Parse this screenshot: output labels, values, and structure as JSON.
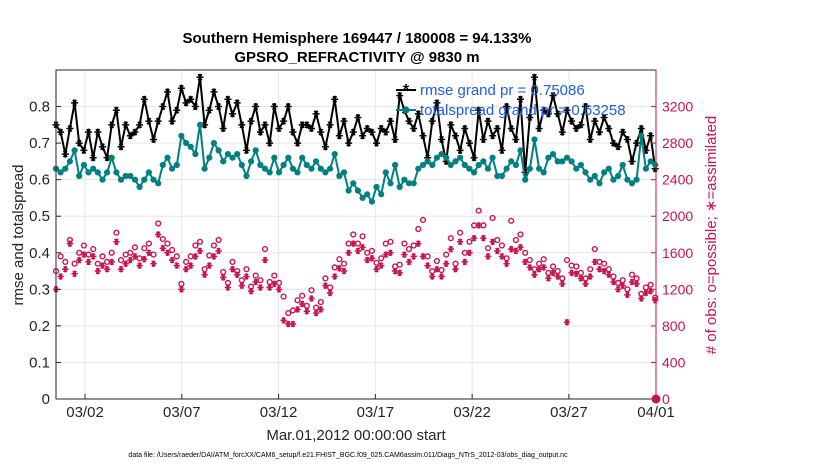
{
  "chart_data": {
    "type": "line",
    "title_line1": "Southern Hemisphere 169447 / 180008 = 94.133%",
    "title_line2": "GPSRO_REFRACTIVITY @ 9830 m",
    "xlabel": "Mar.01,2012 00:00:00 start",
    "ylabel_left": "rmse and totalspread",
    "ylabel_right": "# of obs: o=possible; ∗=assimilated",
    "footer": "data file: /Users/raeder/DAI/ATM_forcXX/CAM6_setup/f.e21.FHIST_BGC.f09_025.CAM6assim.011/Diags_NTrS_2012-03/obs_diag_output.nc",
    "xlim": [
      0.5,
      31.5
    ],
    "ylim_left": [
      0,
      0.9
    ],
    "ylim_right": [
      0,
      3600
    ],
    "x_tick_labels": [
      "03/02",
      "03/07",
      "03/12",
      "03/17",
      "03/22",
      "03/27",
      "04/01"
    ],
    "x_tick_values": [
      2,
      7,
      12,
      17,
      22,
      27,
      32
    ],
    "y_left_ticks": [
      "0",
      "0.1",
      "0.2",
      "0.3",
      "0.4",
      "0.5",
      "0.6",
      "0.7",
      "0.8"
    ],
    "y_left_tick_values": [
      0,
      0.1,
      0.2,
      0.3,
      0.4,
      0.5,
      0.6,
      0.7,
      0.8
    ],
    "y_right_ticks": [
      "0",
      "400",
      "800",
      "1200",
      "1600",
      "2000",
      "2400",
      "2800",
      "3200"
    ],
    "y_right_tick_values": [
      0,
      400,
      800,
      1200,
      1600,
      2000,
      2400,
      2800,
      3200
    ],
    "colors": {
      "rmse": "#000000",
      "spread": "#008080",
      "obs": "#c8144f",
      "legend_text": "#1f5fe0",
      "axis": "#262626"
    },
    "series": [
      {
        "name": "rmse grand pr = 0.75086",
        "axis": "left",
        "x": [
          0.5,
          0.74,
          0.98,
          1.22,
          1.46,
          1.7,
          1.94,
          2.18,
          2.42,
          2.66,
          2.9,
          3.14,
          3.38,
          3.62,
          3.86,
          4.1,
          4.34,
          4.58,
          4.82,
          5.06,
          5.3,
          5.54,
          5.78,
          6.02,
          6.26,
          6.5,
          6.74,
          6.98,
          7.22,
          7.46,
          7.7,
          7.94,
          8.18,
          8.42,
          8.66,
          8.9,
          9.14,
          9.38,
          9.62,
          9.86,
          10.1,
          10.34,
          10.58,
          10.82,
          11.06,
          11.3,
          11.54,
          11.78,
          12.02,
          12.26,
          12.5,
          12.74,
          12.98,
          13.22,
          13.46,
          13.7,
          13.94,
          14.18,
          14.42,
          14.66,
          14.9,
          15.14,
          15.38,
          15.62,
          15.86,
          16.1,
          16.34,
          16.58,
          16.82,
          17.06,
          17.3,
          17.54,
          17.78,
          18.02,
          18.26,
          18.5,
          18.74,
          18.98,
          19.22,
          19.46,
          19.7,
          19.94,
          20.18,
          20.42,
          20.66,
          20.9,
          21.14,
          21.38,
          21.62,
          21.86,
          22.1,
          22.34,
          22.58,
          22.82,
          23.06,
          23.3,
          23.54,
          23.78,
          24.02,
          24.26,
          24.5,
          24.74,
          24.98,
          25.22,
          25.46,
          25.7,
          25.94,
          26.18,
          26.42,
          26.66,
          26.9,
          27.14,
          27.38,
          27.62,
          27.86,
          28.1,
          28.34,
          28.58,
          28.82,
          29.06,
          29.3,
          29.54,
          29.78,
          30.02,
          30.26,
          30.5,
          30.74,
          30.98,
          31.22,
          31.46
        ],
        "values": [
          0.75,
          0.73,
          0.67,
          0.74,
          0.81,
          0.7,
          0.68,
          0.73,
          0.66,
          0.73,
          0.69,
          0.66,
          0.75,
          0.79,
          0.69,
          0.75,
          0.72,
          0.73,
          0.75,
          0.82,
          0.76,
          0.71,
          0.76,
          0.8,
          0.84,
          0.76,
          0.79,
          0.85,
          0.81,
          0.82,
          0.8,
          0.88,
          0.75,
          0.79,
          0.84,
          0.8,
          0.74,
          0.82,
          0.78,
          0.81,
          0.75,
          0.68,
          0.76,
          0.8,
          0.73,
          0.75,
          0.7,
          0.8,
          0.74,
          0.76,
          0.8,
          0.73,
          0.7,
          0.75,
          0.75,
          0.74,
          0.78,
          0.73,
          0.69,
          0.75,
          0.82,
          0.72,
          0.76,
          0.7,
          0.73,
          0.77,
          0.72,
          0.74,
          0.73,
          0.7,
          0.74,
          0.73,
          0.76,
          0.71,
          0.83,
          0.79,
          0.76,
          0.74,
          0.78,
          0.72,
          0.66,
          0.76,
          0.81,
          0.71,
          0.65,
          0.75,
          0.72,
          0.68,
          0.74,
          0.7,
          0.66,
          0.79,
          0.71,
          0.76,
          0.72,
          0.74,
          0.68,
          0.8,
          0.74,
          0.71,
          0.82,
          0.62,
          0.77,
          0.88,
          0.74,
          0.79,
          0.78,
          0.83,
          0.78,
          0.73,
          0.79,
          0.76,
          0.74,
          0.75,
          0.8,
          0.71,
          0.76,
          0.73,
          0.77,
          0.74,
          0.7,
          0.69,
          0.73,
          0.71,
          0.65,
          0.7,
          0.74,
          0.68,
          0.72,
          0.63
        ],
        "marker": "*"
      },
      {
        "name": "totalspread grand pr = 0.63258",
        "axis": "left",
        "x": [
          0.5,
          0.74,
          0.98,
          1.22,
          1.46,
          1.7,
          1.94,
          2.18,
          2.42,
          2.66,
          2.9,
          3.14,
          3.38,
          3.62,
          3.86,
          4.1,
          4.34,
          4.58,
          4.82,
          5.06,
          5.3,
          5.54,
          5.78,
          6.02,
          6.26,
          6.5,
          6.74,
          6.98,
          7.22,
          7.46,
          7.7,
          7.94,
          8.18,
          8.42,
          8.66,
          8.9,
          9.14,
          9.38,
          9.62,
          9.86,
          10.1,
          10.34,
          10.58,
          10.82,
          11.06,
          11.3,
          11.54,
          11.78,
          12.02,
          12.26,
          12.5,
          12.74,
          12.98,
          13.22,
          13.46,
          13.7,
          13.94,
          14.18,
          14.42,
          14.66,
          14.9,
          15.14,
          15.38,
          15.62,
          15.86,
          16.1,
          16.34,
          16.58,
          16.82,
          17.06,
          17.3,
          17.54,
          17.78,
          18.02,
          18.26,
          18.5,
          18.74,
          18.98,
          19.22,
          19.46,
          19.7,
          19.94,
          20.18,
          20.42,
          20.66,
          20.9,
          21.14,
          21.38,
          21.62,
          21.86,
          22.1,
          22.34,
          22.58,
          22.82,
          23.06,
          23.3,
          23.54,
          23.78,
          24.02,
          24.26,
          24.5,
          24.74,
          24.98,
          25.22,
          25.46,
          25.7,
          25.94,
          26.18,
          26.42,
          26.66,
          26.9,
          27.14,
          27.38,
          27.62,
          27.86,
          28.1,
          28.34,
          28.58,
          28.82,
          29.06,
          29.3,
          29.54,
          29.78,
          30.02,
          30.26,
          30.5,
          30.74,
          30.98,
          31.22,
          31.46
        ],
        "values": [
          0.63,
          0.62,
          0.63,
          0.65,
          0.68,
          0.61,
          0.64,
          0.62,
          0.63,
          0.62,
          0.6,
          0.62,
          0.66,
          0.62,
          0.6,
          0.61,
          0.61,
          0.6,
          0.58,
          0.6,
          0.62,
          0.6,
          0.59,
          0.64,
          0.66,
          0.63,
          0.64,
          0.72,
          0.7,
          0.69,
          0.67,
          0.75,
          0.63,
          0.66,
          0.7,
          0.68,
          0.65,
          0.67,
          0.66,
          0.67,
          0.64,
          0.61,
          0.65,
          0.68,
          0.64,
          0.63,
          0.62,
          0.66,
          0.62,
          0.64,
          0.66,
          0.63,
          0.62,
          0.66,
          0.64,
          0.63,
          0.65,
          0.63,
          0.62,
          0.63,
          0.67,
          0.61,
          0.62,
          0.57,
          0.59,
          0.57,
          0.55,
          0.56,
          0.54,
          0.58,
          0.56,
          0.62,
          0.59,
          0.64,
          0.58,
          0.6,
          0.59,
          0.59,
          0.63,
          0.64,
          0.65,
          0.64,
          0.66,
          0.67,
          0.66,
          0.64,
          0.65,
          0.66,
          0.64,
          0.63,
          0.62,
          0.64,
          0.65,
          0.63,
          0.66,
          0.61,
          0.61,
          0.63,
          0.65,
          0.64,
          0.68,
          0.6,
          0.63,
          0.71,
          0.63,
          0.62,
          0.66,
          0.67,
          0.65,
          0.65,
          0.66,
          0.65,
          0.63,
          0.64,
          0.62,
          0.6,
          0.61,
          0.59,
          0.62,
          0.63,
          0.6,
          0.61,
          0.64,
          0.6,
          0.59,
          0.6,
          0.72,
          0.63,
          0.65,
          0.64
        ],
        "marker": "o"
      },
      {
        "name": "obs possible",
        "axis": "right",
        "x": [
          0.5,
          0.74,
          0.98,
          1.22,
          1.46,
          1.7,
          1.94,
          2.18,
          2.42,
          2.66,
          2.9,
          3.14,
          3.38,
          3.62,
          3.86,
          4.1,
          4.34,
          4.58,
          4.82,
          5.06,
          5.3,
          5.54,
          5.78,
          6.02,
          6.26,
          6.5,
          6.74,
          6.98,
          7.22,
          7.46,
          7.7,
          7.94,
          8.18,
          8.42,
          8.66,
          8.9,
          9.14,
          9.38,
          9.62,
          9.86,
          10.1,
          10.34,
          10.58,
          10.82,
          11.06,
          11.3,
          11.54,
          11.78,
          12.02,
          12.26,
          12.5,
          12.74,
          12.98,
          13.22,
          13.46,
          13.7,
          13.94,
          14.18,
          14.42,
          14.66,
          14.9,
          15.14,
          15.38,
          15.62,
          15.86,
          16.1,
          16.34,
          16.58,
          16.82,
          17.06,
          17.3,
          17.54,
          17.78,
          18.02,
          18.26,
          18.5,
          18.74,
          18.98,
          19.22,
          19.46,
          19.7,
          19.94,
          20.18,
          20.42,
          20.66,
          20.9,
          21.14,
          21.38,
          21.62,
          21.86,
          22.1,
          22.34,
          22.58,
          22.82,
          23.06,
          23.3,
          23.54,
          23.78,
          24.02,
          24.26,
          24.5,
          24.74,
          24.98,
          25.22,
          25.46,
          25.7,
          25.94,
          26.18,
          26.42,
          26.66,
          26.9,
          27.14,
          27.38,
          27.62,
          27.86,
          28.1,
          28.34,
          28.58,
          28.82,
          29.06,
          29.3,
          29.54,
          29.78,
          30.02,
          30.26,
          30.5,
          30.74,
          30.98,
          31.22,
          31.46
        ],
        "values": [
          1400,
          1560,
          1500,
          1740,
          1480,
          1600,
          1680,
          1580,
          1640,
          1480,
          1560,
          1500,
          1600,
          1820,
          1520,
          1580,
          1600,
          1660,
          1540,
          1650,
          1700,
          1580,
          1920,
          1750,
          1700,
          1630,
          1560,
          1260,
          1500,
          1560,
          1680,
          1720,
          1420,
          1570,
          1680,
          1740,
          1390,
          1270,
          1500,
          1400,
          1300,
          1420,
          1230,
          1350,
          1300,
          1640,
          1280,
          1350,
          1270,
          1120,
          940,
          970,
          1080,
          1130,
          1020,
          1190,
          1000,
          1060,
          1320,
          1220,
          1440,
          1530,
          1480,
          1700,
          1800,
          1700,
          1780,
          1600,
          1620,
          1490,
          1540,
          1700,
          1720,
          1450,
          1470,
          1700,
          1640,
          1680,
          1860,
          1960,
          1560,
          1400,
          1510,
          1410,
          1580,
          1760,
          1480,
          1820,
          1600,
          1720,
          1900,
          2060,
          1900,
          1650,
          1980,
          1740,
          1680,
          1540,
          1950,
          1740,
          1800,
          1600,
          1520,
          1420,
          1480,
          1530,
          1380,
          1450,
          1400,
          1320,
          1520,
          1460,
          1450,
          1380,
          1320,
          1420,
          1640,
          1500,
          1480,
          1420,
          1340,
          1270,
          1300,
          1200,
          1360,
          1320,
          1150,
          1220,
          1250,
          1110
        ],
        "marker": "o"
      },
      {
        "name": "obs assimilated",
        "axis": "right",
        "x": [
          0.5,
          0.74,
          0.98,
          1.22,
          1.46,
          1.7,
          1.94,
          2.18,
          2.42,
          2.66,
          2.9,
          3.14,
          3.38,
          3.62,
          3.86,
          4.1,
          4.34,
          4.58,
          4.82,
          5.06,
          5.3,
          5.54,
          5.78,
          6.02,
          6.26,
          6.5,
          6.74,
          6.98,
          7.22,
          7.46,
          7.7,
          7.94,
          8.18,
          8.42,
          8.66,
          8.9,
          9.14,
          9.38,
          9.62,
          9.86,
          10.1,
          10.34,
          10.58,
          10.82,
          11.06,
          11.3,
          11.54,
          11.78,
          12.02,
          12.26,
          12.5,
          12.74,
          12.98,
          13.22,
          13.46,
          13.7,
          13.94,
          14.18,
          14.42,
          14.66,
          14.9,
          15.14,
          15.38,
          15.62,
          15.86,
          16.1,
          16.34,
          16.58,
          16.82,
          17.06,
          17.3,
          17.54,
          17.78,
          18.02,
          18.26,
          18.5,
          18.74,
          18.98,
          19.22,
          19.46,
          19.7,
          19.94,
          20.18,
          20.42,
          20.66,
          20.9,
          21.14,
          21.38,
          21.62,
          21.86,
          22.1,
          22.34,
          22.58,
          22.82,
          23.06,
          23.3,
          23.54,
          23.78,
          24.02,
          24.26,
          24.5,
          24.74,
          24.98,
          25.22,
          25.46,
          25.7,
          25.94,
          26.18,
          26.42,
          26.66,
          26.9,
          27.14,
          27.38,
          27.62,
          27.86,
          28.1,
          28.34,
          28.58,
          28.82,
          29.06,
          29.3,
          29.54,
          29.78,
          30.02,
          30.26,
          30.5,
          30.74,
          30.98,
          31.22,
          31.46
        ],
        "values": [
          1200,
          1340,
          1420,
          1700,
          1370,
          1520,
          1580,
          1500,
          1560,
          1400,
          1460,
          1420,
          1500,
          1720,
          1420,
          1480,
          1520,
          1560,
          1460,
          1530,
          1600,
          1480,
          1800,
          1650,
          1600,
          1520,
          1460,
          1200,
          1420,
          1460,
          1560,
          1620,
          1360,
          1460,
          1560,
          1620,
          1330,
          1220,
          1420,
          1360,
          1240,
          1340,
          1180,
          1280,
          1220,
          1520,
          1220,
          1260,
          1200,
          860,
          820,
          820,
          980,
          1040,
          960,
          1100,
          940,
          980,
          1240,
          1160,
          1340,
          1430,
          1400,
          1600,
          1700,
          1620,
          1660,
          1520,
          1540,
          1420,
          1460,
          1580,
          1600,
          1400,
          1380,
          1580,
          1500,
          1560,
          1700,
          1560,
          1460,
          1340,
          1420,
          1340,
          1480,
          1640,
          1420,
          1720,
          1500,
          1600,
          1760,
          1900,
          1760,
          1560,
          1720,
          1620,
          1560,
          1480,
          1640,
          1620,
          1660,
          1500,
          1440,
          1360,
          1420,
          1440,
          1320,
          1380,
          1340,
          1260,
          840,
          1380,
          1370,
          1320,
          1260,
          1340,
          1500,
          1420,
          1400,
          1360,
          1280,
          1200,
          1240,
          1140,
          1280,
          1260,
          1100,
          1160,
          1180,
          1080
        ],
        "marker": "*"
      }
    ],
    "legend": [
      {
        "label": "rmse grand pr = 0.75086",
        "series": "rmse"
      },
      {
        "label": "totalspread grand pr = 0.63258",
        "series": "spread"
      }
    ],
    "legend_position": "top-right"
  }
}
